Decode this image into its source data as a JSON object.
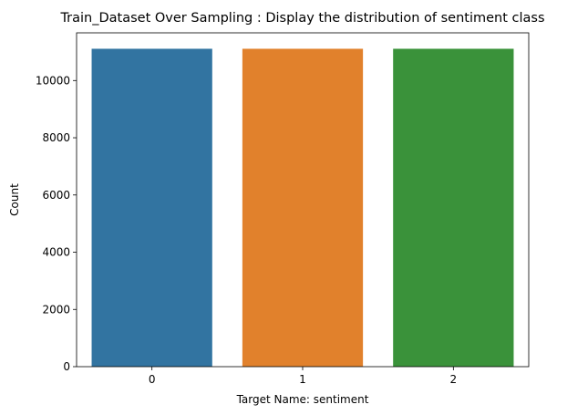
{
  "chart_data": {
    "type": "bar",
    "title": "Train_Dataset Over Sampling : Display the distribution of sentiment class",
    "xlabel": "Target Name: sentiment",
    "ylabel": "Count",
    "categories": [
      "0",
      "1",
      "2"
    ],
    "values": [
      11110,
      11110,
      11110
    ],
    "ylim": [
      0,
      11667
    ],
    "yticks": [
      0,
      2000,
      4000,
      6000,
      8000,
      10000
    ],
    "grid": false,
    "legend": "none",
    "colors": [
      "#3274a1",
      "#e1812c",
      "#3a923a"
    ]
  }
}
